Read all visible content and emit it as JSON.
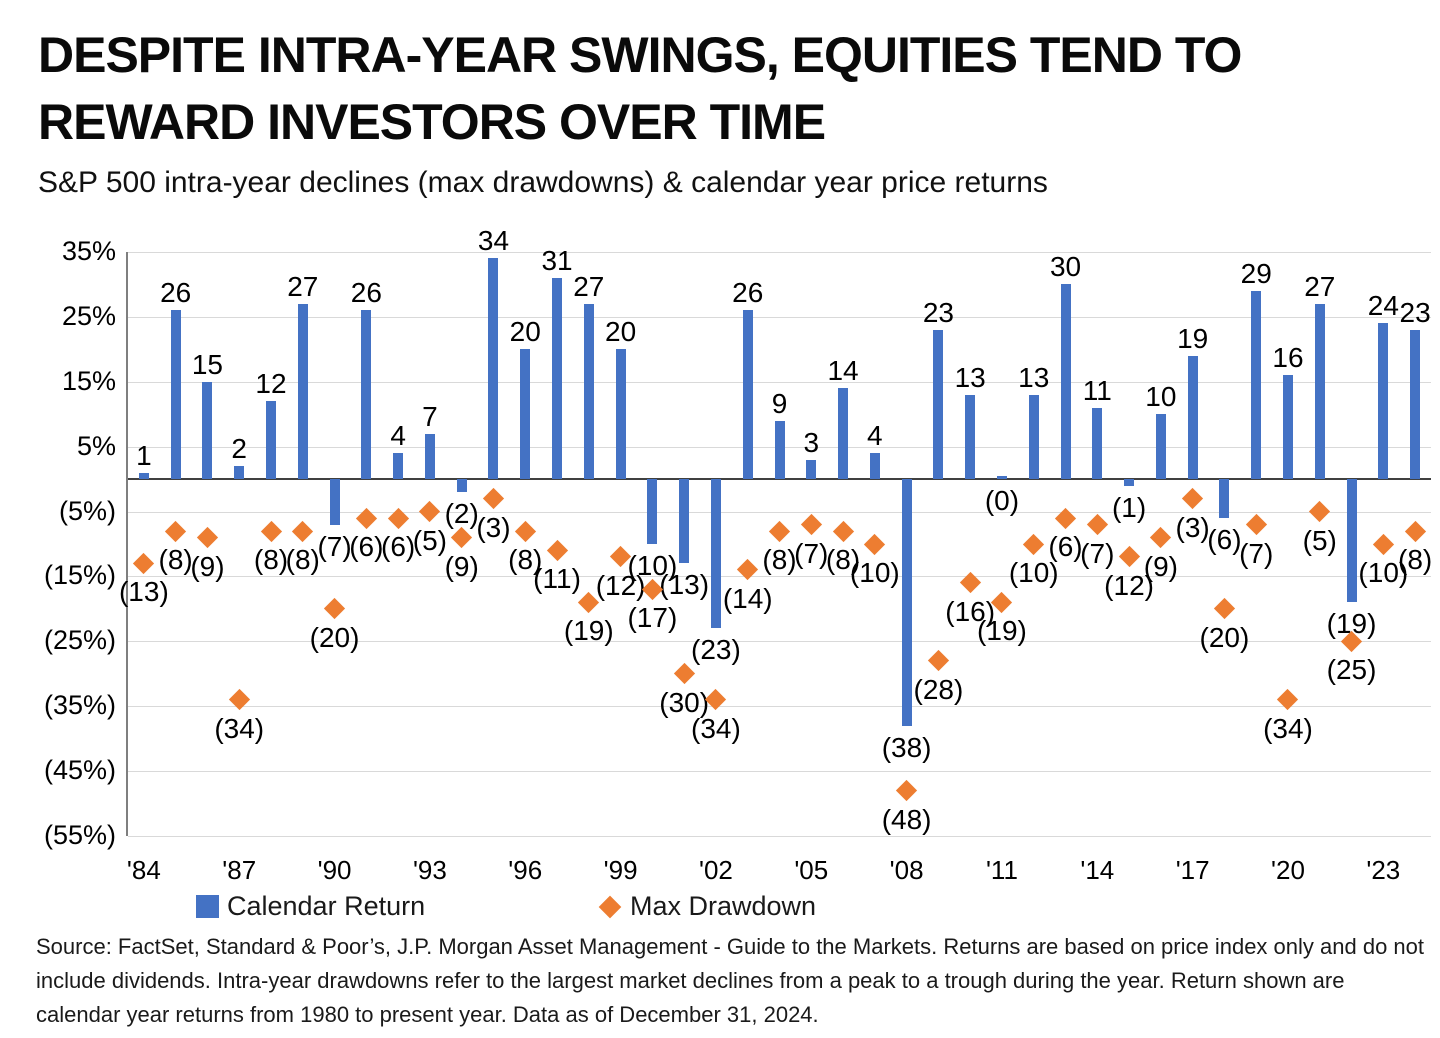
{
  "header": {
    "title_line1": "DESPITE INTRA-YEAR SWINGS, EQUITIES TEND TO",
    "title_line2": "REWARD INVESTORS OVER TIME",
    "subtitle": "S&P 500 intra-year declines (max drawdowns) & calendar year price returns"
  },
  "colors": {
    "bar": "#4472C4",
    "diamond": "#ED7D31",
    "gridline": "#D9D9D9",
    "zero_line": "#404040",
    "axis_line": "#7F7F7F",
    "label_text": "#000000"
  },
  "chart_data": {
    "type": "bar",
    "title": "DESPITE INTRA-YEAR SWINGS, EQUITIES TEND TO REWARD INVESTORS OVER TIME",
    "subtitle": "S&P 500 intra-year declines (max drawdowns) & calendar year price returns",
    "xlabel": "",
    "ylabel": "",
    "ylim": [
      -55,
      35
    ],
    "grid": true,
    "legend_position": "bottom",
    "negative_value_format": "parentheses",
    "x": [
      1984,
      1985,
      1986,
      1987,
      1988,
      1989,
      1990,
      1991,
      1992,
      1993,
      1994,
      1995,
      1996,
      1997,
      1998,
      1999,
      2000,
      2001,
      2002,
      2003,
      2004,
      2005,
      2006,
      2007,
      2008,
      2009,
      2010,
      2011,
      2012,
      2013,
      2014,
      2015,
      2016,
      2017,
      2018,
      2019,
      2020,
      2021,
      2022,
      2023,
      2024
    ],
    "series": [
      {
        "name": "Calendar Return",
        "marker": "bar",
        "color": "#4472C4",
        "values": [
          1,
          26,
          15,
          2,
          12,
          27,
          -7,
          26,
          4,
          7,
          -2,
          34,
          20,
          31,
          27,
          20,
          -10,
          -13,
          -23,
          26,
          9,
          3,
          14,
          4,
          -38,
          23,
          13,
          0,
          13,
          30,
          11,
          -1,
          10,
          19,
          -6,
          29,
          16,
          27,
          -19,
          24,
          23
        ]
      },
      {
        "name": "Max Drawdown",
        "marker": "diamond",
        "color": "#ED7D31",
        "values": [
          -13,
          -8,
          -9,
          -34,
          -8,
          -8,
          -20,
          -6,
          -6,
          -5,
          -9,
          -3,
          -8,
          -11,
          -19,
          -12,
          -17,
          -30,
          -34,
          -14,
          -8,
          -7,
          -8,
          -10,
          -48,
          -28,
          -16,
          -19,
          -10,
          -6,
          -7,
          -12,
          -9,
          -3,
          -20,
          -7,
          -34,
          -5,
          -25,
          -10,
          -8
        ]
      }
    ],
    "yticks": {
      "values": [
        35,
        25,
        15,
        5,
        -5,
        -15,
        -25,
        -35,
        -45,
        -55
      ],
      "labels": [
        "35%",
        "25%",
        "15%",
        "5%",
        "(5%)",
        "(15%)",
        "(25%)",
        "(35%)",
        "(45%)",
        "(55%)"
      ]
    },
    "xticks": [
      {
        "year": 1984,
        "label": "'84"
      },
      {
        "year": 1987,
        "label": "'87"
      },
      {
        "year": 1990,
        "label": "'90"
      },
      {
        "year": 1993,
        "label": "'93"
      },
      {
        "year": 1996,
        "label": "'96"
      },
      {
        "year": 1999,
        "label": "'99"
      },
      {
        "year": 2002,
        "label": "'02"
      },
      {
        "year": 2005,
        "label": "'05"
      },
      {
        "year": 2008,
        "label": "'08"
      },
      {
        "year": 2011,
        "label": "'11"
      },
      {
        "year": 2014,
        "label": "'14"
      },
      {
        "year": 2017,
        "label": "'17"
      },
      {
        "year": 2020,
        "label": "'20"
      },
      {
        "year": 2023,
        "label": "'23"
      }
    ]
  },
  "footer": {
    "source": "Source: FactSet, Standard & Poor’s, J.P. Morgan Asset Management - Guide to the Markets. Returns are based on price index only and do not include dividends. Intra-year drawdowns refer to the largest market declines from a peak to a trough during the year. Return shown are calendar year returns from 1980 to present year. Data as of December 31, 2024."
  }
}
